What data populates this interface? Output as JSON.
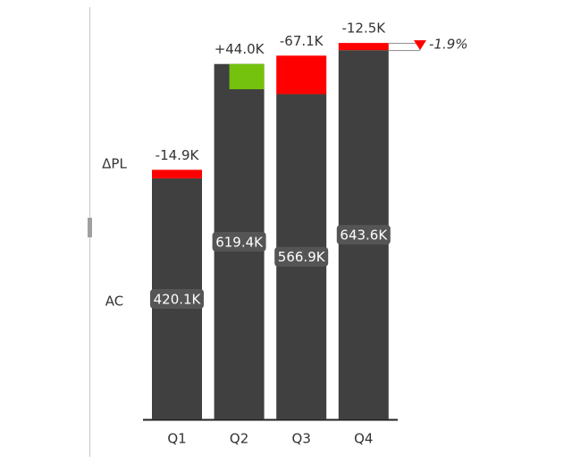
{
  "chart_data": {
    "type": "waterfall",
    "categories": [
      "Q1",
      "Q2",
      "Q3",
      "Q4"
    ],
    "series": [
      {
        "name": "AC",
        "color": "#404040",
        "values": [
          420.1,
          619.4,
          566.9,
          643.6
        ],
        "value_labels": [
          "420.1K",
          "619.4K",
          "566.9K",
          "643.6K"
        ]
      },
      {
        "name": "ΔPL",
        "positive_color": "#74c20e",
        "negative_color": "#ff0000",
        "values": [
          -14.9,
          44.0,
          -67.1,
          -12.5
        ],
        "value_labels": [
          "-14.9K",
          "+44.0K",
          "-67.1K",
          "-12.5K"
        ]
      }
    ],
    "annotation": "-1.9%"
  }
}
